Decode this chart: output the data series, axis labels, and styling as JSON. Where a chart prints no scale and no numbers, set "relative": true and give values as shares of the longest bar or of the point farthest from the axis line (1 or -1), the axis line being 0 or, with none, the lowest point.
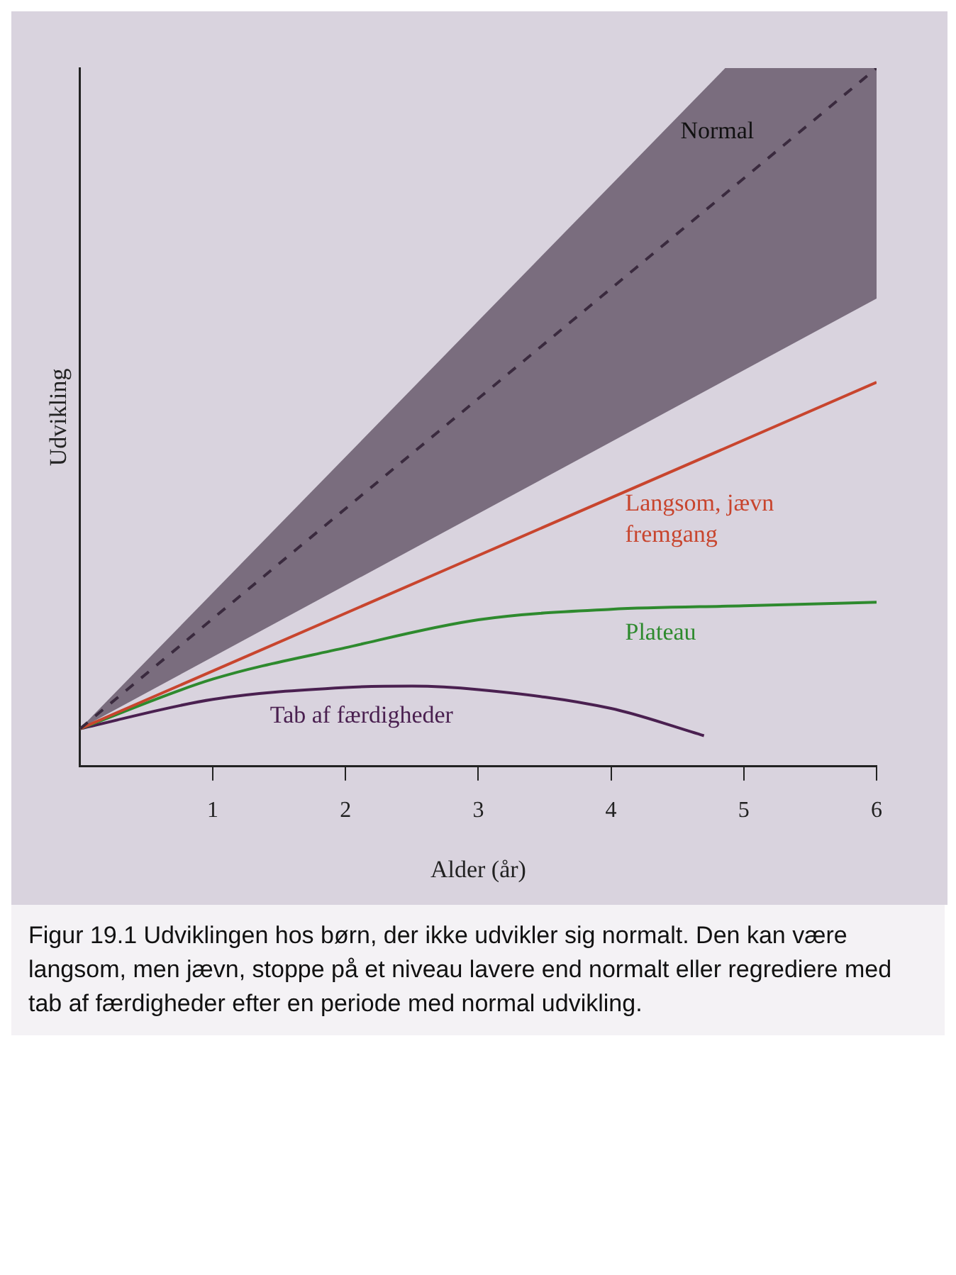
{
  "chart_data": {
    "type": "line",
    "relative": true,
    "xlabel": "Alder (år)",
    "ylabel": "Udvikling",
    "xlim": [
      0,
      6
    ],
    "xticks": [
      1,
      2,
      3,
      4,
      5,
      6
    ],
    "grid": false,
    "legend": false,
    "series": [
      {
        "name": "Normal",
        "type": "line",
        "line_style": "dashed",
        "color": "#3a2a3e",
        "x": [
          0,
          4.86,
          6
        ],
        "values": [
          0.054,
          0.82,
          1.0
        ],
        "lower": [
          0.054,
          0.553,
          0.67
        ],
        "upper": [
          0.054,
          1.0,
          1.0
        ]
      },
      {
        "name": "Langsom, jævn fremgang",
        "type": "line",
        "line_style": "solid",
        "color": "#c8452e",
        "x": [
          0,
          6
        ],
        "values": [
          0.054,
          0.55
        ]
      },
      {
        "name": "Plateau",
        "type": "line",
        "line_style": "solid",
        "color": "#2e8a2e",
        "x": [
          0,
          1,
          2,
          3,
          4,
          5,
          6
        ],
        "values": [
          0.054,
          0.125,
          0.17,
          0.21,
          0.225,
          0.23,
          0.235
        ]
      },
      {
        "name": "Tab af færdigheder",
        "type": "line",
        "line_style": "solid",
        "color": "#4a2050",
        "x": [
          0,
          1,
          2,
          2.5,
          3,
          4,
          4.7
        ],
        "values": [
          0.054,
          0.096,
          0.113,
          0.115,
          0.11,
          0.083,
          0.044
        ]
      }
    ],
    "annotations": [
      "Figur 19.1 Udviklingen hos børn, der ikke udvikler sig normalt. Den kan være langsom, men jævn, stoppe på et niveau lavere end normalt eller regrediere med tab af færdigheder efter en periode med normal udvikling."
    ]
  }
}
